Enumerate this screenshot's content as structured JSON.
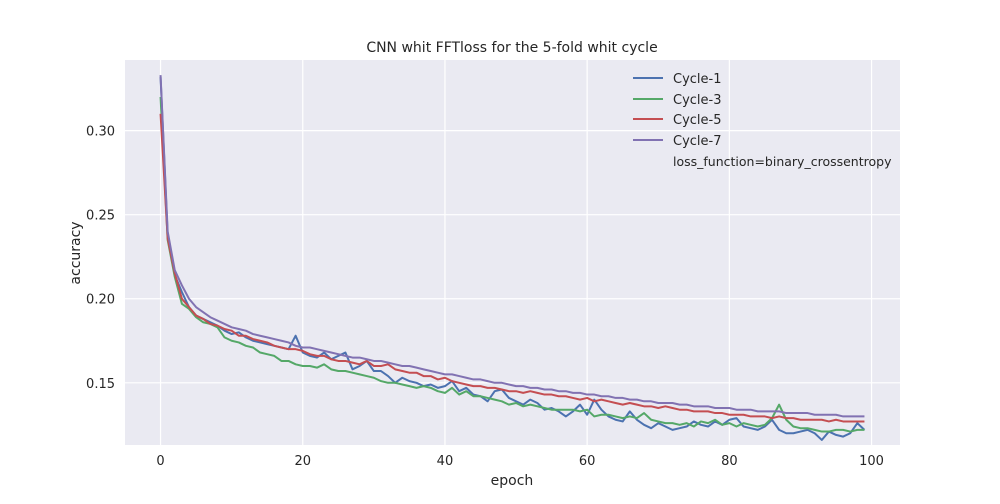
{
  "chart_data": {
    "type": "line",
    "title": "CNN whit FFTloss for the 5-fold whit cycle",
    "xlabel": "epoch",
    "ylabel": "accuracy",
    "xlim": [
      -5,
      104
    ],
    "ylim": [
      0.113,
      0.342
    ],
    "xticks": [
      0,
      20,
      40,
      60,
      80,
      100
    ],
    "xtick_labels": [
      "0",
      "20",
      "40",
      "60",
      "80",
      "100"
    ],
    "yticks": [
      0.15,
      0.2,
      0.25,
      0.3
    ],
    "ytick_labels": [
      "0.15",
      "0.20",
      "0.25",
      "0.30"
    ],
    "grid": true,
    "legend_position": "top-right",
    "legend_extra_text": "loss_function=binary_crossentropy",
    "colors": {
      "background": "#EAEAF2",
      "grid": "#FFFFFF"
    },
    "x": [
      0,
      1,
      2,
      3,
      4,
      5,
      6,
      7,
      8,
      9,
      10,
      11,
      12,
      13,
      14,
      15,
      16,
      17,
      18,
      19,
      20,
      21,
      22,
      23,
      24,
      25,
      26,
      27,
      28,
      29,
      30,
      31,
      32,
      33,
      34,
      35,
      36,
      37,
      38,
      39,
      40,
      41,
      42,
      43,
      44,
      45,
      46,
      47,
      48,
      49,
      50,
      51,
      52,
      53,
      54,
      55,
      56,
      57,
      58,
      59,
      60,
      61,
      62,
      63,
      64,
      65,
      66,
      67,
      68,
      69,
      70,
      71,
      72,
      73,
      74,
      75,
      76,
      77,
      78,
      79,
      80,
      81,
      82,
      83,
      84,
      85,
      86,
      87,
      88,
      89,
      90,
      91,
      92,
      93,
      94,
      95,
      96,
      97,
      98,
      99
    ],
    "series": [
      {
        "name": "Cycle-1",
        "color": "#4C72B0",
        "values": [
          0.332,
          0.238,
          0.214,
          0.204,
          0.195,
          0.19,
          0.188,
          0.186,
          0.184,
          0.181,
          0.179,
          0.18,
          0.177,
          0.175,
          0.174,
          0.173,
          0.172,
          0.171,
          0.17,
          0.178,
          0.168,
          0.166,
          0.165,
          0.168,
          0.164,
          0.166,
          0.168,
          0.158,
          0.16,
          0.163,
          0.157,
          0.157,
          0.154,
          0.15,
          0.153,
          0.151,
          0.15,
          0.148,
          0.149,
          0.147,
          0.148,
          0.151,
          0.145,
          0.147,
          0.143,
          0.142,
          0.139,
          0.145,
          0.146,
          0.141,
          0.139,
          0.137,
          0.14,
          0.138,
          0.134,
          0.135,
          0.133,
          0.13,
          0.133,
          0.137,
          0.131,
          0.14,
          0.134,
          0.13,
          0.128,
          0.127,
          0.133,
          0.128,
          0.125,
          0.123,
          0.126,
          0.124,
          0.122,
          0.123,
          0.124,
          0.127,
          0.125,
          0.124,
          0.127,
          0.125,
          0.128,
          0.129,
          0.124,
          0.123,
          0.122,
          0.124,
          0.128,
          0.122,
          0.12,
          0.12,
          0.121,
          0.122,
          0.12,
          0.116,
          0.121,
          0.119,
          0.118,
          0.12,
          0.126,
          0.122
        ]
      },
      {
        "name": "Cycle-3",
        "color": "#55A868",
        "values": [
          0.32,
          0.235,
          0.213,
          0.197,
          0.194,
          0.189,
          0.186,
          0.185,
          0.183,
          0.177,
          0.175,
          0.174,
          0.172,
          0.171,
          0.168,
          0.167,
          0.166,
          0.163,
          0.163,
          0.161,
          0.16,
          0.16,
          0.159,
          0.161,
          0.158,
          0.157,
          0.157,
          0.156,
          0.155,
          0.154,
          0.153,
          0.151,
          0.15,
          0.15,
          0.149,
          0.148,
          0.147,
          0.148,
          0.147,
          0.145,
          0.144,
          0.147,
          0.143,
          0.145,
          0.142,
          0.142,
          0.141,
          0.14,
          0.139,
          0.137,
          0.138,
          0.136,
          0.137,
          0.136,
          0.135,
          0.134,
          0.134,
          0.134,
          0.134,
          0.133,
          0.134,
          0.13,
          0.131,
          0.131,
          0.13,
          0.129,
          0.13,
          0.129,
          0.132,
          0.128,
          0.127,
          0.126,
          0.126,
          0.125,
          0.126,
          0.124,
          0.127,
          0.126,
          0.128,
          0.125,
          0.126,
          0.124,
          0.126,
          0.125,
          0.124,
          0.125,
          0.129,
          0.137,
          0.128,
          0.124,
          0.123,
          0.123,
          0.122,
          0.121,
          0.121,
          0.122,
          0.122,
          0.121,
          0.122,
          0.122
        ]
      },
      {
        "name": "Cycle-5",
        "color": "#C44E52",
        "values": [
          0.31,
          0.236,
          0.215,
          0.2,
          0.195,
          0.19,
          0.188,
          0.185,
          0.184,
          0.182,
          0.181,
          0.178,
          0.178,
          0.176,
          0.175,
          0.174,
          0.172,
          0.171,
          0.17,
          0.17,
          0.169,
          0.167,
          0.166,
          0.166,
          0.164,
          0.163,
          0.163,
          0.162,
          0.161,
          0.163,
          0.16,
          0.16,
          0.161,
          0.158,
          0.157,
          0.156,
          0.156,
          0.154,
          0.154,
          0.152,
          0.153,
          0.151,
          0.15,
          0.149,
          0.148,
          0.148,
          0.147,
          0.147,
          0.146,
          0.145,
          0.145,
          0.144,
          0.145,
          0.144,
          0.143,
          0.143,
          0.142,
          0.142,
          0.141,
          0.14,
          0.141,
          0.139,
          0.14,
          0.139,
          0.138,
          0.137,
          0.138,
          0.137,
          0.136,
          0.136,
          0.135,
          0.136,
          0.135,
          0.134,
          0.134,
          0.133,
          0.133,
          0.133,
          0.132,
          0.132,
          0.131,
          0.131,
          0.131,
          0.13,
          0.13,
          0.13,
          0.129,
          0.13,
          0.129,
          0.129,
          0.128,
          0.128,
          0.128,
          0.128,
          0.127,
          0.128,
          0.127,
          0.127,
          0.127,
          0.127
        ]
      },
      {
        "name": "Cycle-7",
        "color": "#8172B2",
        "values": [
          0.333,
          0.24,
          0.217,
          0.208,
          0.2,
          0.195,
          0.192,
          0.189,
          0.187,
          0.185,
          0.183,
          0.182,
          0.181,
          0.179,
          0.178,
          0.177,
          0.176,
          0.175,
          0.174,
          0.172,
          0.171,
          0.171,
          0.17,
          0.169,
          0.168,
          0.167,
          0.166,
          0.165,
          0.165,
          0.164,
          0.163,
          0.163,
          0.162,
          0.161,
          0.16,
          0.16,
          0.159,
          0.158,
          0.157,
          0.156,
          0.155,
          0.155,
          0.154,
          0.153,
          0.152,
          0.152,
          0.151,
          0.15,
          0.15,
          0.149,
          0.148,
          0.148,
          0.147,
          0.147,
          0.146,
          0.146,
          0.145,
          0.145,
          0.144,
          0.144,
          0.143,
          0.143,
          0.142,
          0.142,
          0.141,
          0.141,
          0.14,
          0.14,
          0.139,
          0.139,
          0.138,
          0.138,
          0.138,
          0.137,
          0.137,
          0.136,
          0.136,
          0.136,
          0.135,
          0.135,
          0.135,
          0.134,
          0.134,
          0.134,
          0.133,
          0.133,
          0.133,
          0.133,
          0.132,
          0.132,
          0.132,
          0.132,
          0.131,
          0.131,
          0.131,
          0.131,
          0.13,
          0.13,
          0.13,
          0.13
        ]
      }
    ]
  }
}
